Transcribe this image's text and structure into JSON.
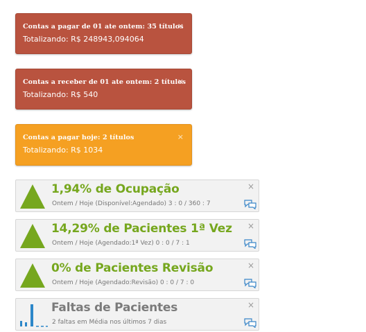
{
  "alerts": [
    {
      "title": "Contas a pagar de 01 ate ontem: 35 títulos",
      "total": "Totalizando: R$ 248943,094064",
      "color": "#b9533f",
      "close": "×"
    },
    {
      "title": "Contas a receber de 01 ate ontem: 2 títulos",
      "total": "Totalizando: R$ 540",
      "color": "#b9533f",
      "close": "×"
    },
    {
      "title": "Contas a pagar hoje: 2 títulos",
      "total": "Totalizando: R$ 1034",
      "color": "#f5a022",
      "close": "×"
    }
  ],
  "stats": [
    {
      "title": "1,94% de Ocupação",
      "subtitle": "Ontem / Hoje (Disponível:Agendado) 3 : 0 / 360 : 7",
      "icon": "triangle-up-icon",
      "color": "#76a71e",
      "close": "×"
    },
    {
      "title": "14,29% de Pacientes 1ª Vez",
      "subtitle": "Ontem / Hoje (Agendado:1ª Vez) 0 : 0 / 7 : 1",
      "icon": "triangle-up-icon",
      "color": "#76a71e",
      "close": "×"
    },
    {
      "title": "0% de Pacientes Revisão",
      "subtitle": "Ontem / Hoje (Agendado:Revisão) 0 : 0 / 7 : 0",
      "icon": "triangle-up-icon",
      "color": "#76a71e",
      "close": "×"
    },
    {
      "title": "Faltas de Pacientes",
      "subtitle": "2 faltas em Média nos últimos 7 dias",
      "icon": "bar-chart-icon",
      "color": "#7b7b7b",
      "close": "×"
    }
  ]
}
